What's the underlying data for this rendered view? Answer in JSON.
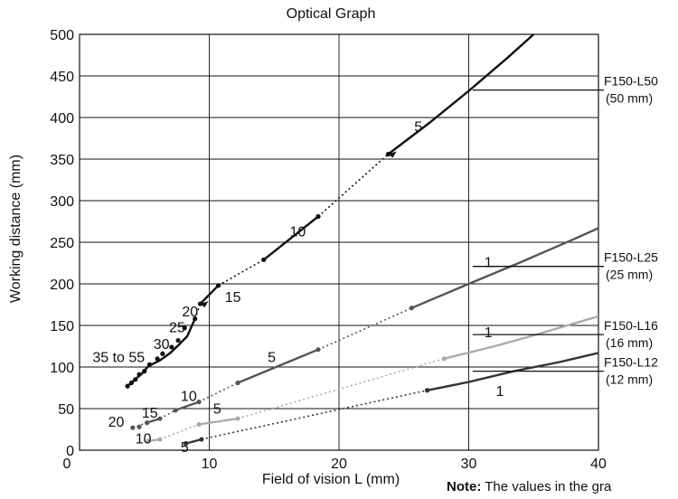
{
  "chart_data": {
    "type": "line",
    "title": "Optical Graph",
    "xlabel": "Field of vision L (mm)",
    "ylabel": "Working distance (mm)",
    "xlim": [
      0,
      40
    ],
    "ylim": [
      0,
      500
    ],
    "x_ticks": [
      0,
      10,
      20,
      30,
      40
    ],
    "y_ticks": [
      0,
      50,
      100,
      150,
      200,
      250,
      300,
      350,
      400,
      450,
      500
    ],
    "grid": true,
    "series": [
      {
        "name": "F150-L50",
        "detail": "(50 mm)",
        "color": "#111111",
        "segments": [
          {
            "style": "solid",
            "points": [
              [
                23.8,
                356
              ],
              [
                27,
                394
              ],
              [
                30,
                432
              ],
              [
                33,
                472
              ],
              [
                35,
                500
              ]
            ]
          },
          {
            "style": "dotted",
            "points": [
              [
                18.4,
                281
              ],
              [
                23.8,
                356
              ]
            ]
          },
          {
            "style": "solid",
            "points": [
              [
                14.2,
                229
              ],
              [
                18.4,
                281
              ]
            ]
          },
          {
            "style": "dotted",
            "points": [
              [
                10.7,
                198
              ],
              [
                14.2,
                229
              ]
            ]
          },
          {
            "style": "solid",
            "points": [
              [
                9.3,
                176
              ],
              [
                10.7,
                198
              ]
            ]
          },
          {
            "style": "dotted",
            "points": [
              [
                8.9,
                158
              ],
              [
                9.3,
                176
              ]
            ]
          },
          {
            "style": "solid",
            "points": [
              [
                3.7,
                77
              ],
              [
                4.2,
                84
              ],
              [
                4.8,
                92
              ],
              [
                5.3,
                101
              ],
              [
                6.2,
                108
              ],
              [
                7.0,
                117
              ],
              [
                7.6,
                126
              ],
              [
                8.3,
                137
              ],
              [
                8.9,
                158
              ]
            ]
          }
        ],
        "markers": [
          [
            23.8,
            356
          ],
          [
            18.4,
            281
          ],
          [
            14.2,
            229
          ],
          [
            10.7,
            198
          ],
          [
            9.3,
            176
          ],
          [
            8.9,
            158
          ],
          [
            8.1,
            147
          ],
          [
            7.6,
            132
          ],
          [
            7.1,
            124
          ],
          [
            6.4,
            116
          ],
          [
            6.0,
            110
          ],
          [
            5.4,
            103
          ],
          [
            5.0,
            95
          ],
          [
            4.6,
            91
          ],
          [
            4.3,
            85
          ],
          [
            4.0,
            81
          ],
          [
            3.7,
            77
          ]
        ],
        "labels": [
          {
            "text": "5",
            "x": 25.8,
            "y": 383
          },
          {
            "text": "10",
            "x": 16.2,
            "y": 257
          },
          {
            "text": "15",
            "x": 11.2,
            "y": 178
          },
          {
            "text": "20",
            "x": 7.9,
            "y": 161
          },
          {
            "text": "25",
            "x": 6.9,
            "y": 142
          },
          {
            "text": "30",
            "x": 5.7,
            "y": 122
          },
          {
            "text": "35 to 55",
            "x": 1.0,
            "y": 106
          }
        ],
        "arrows": [
          [
            23.8,
            356
          ],
          [
            9.3,
            176
          ]
        ],
        "legend_y": 433
      },
      {
        "name": "F150-L25",
        "detail": "(25 mm)",
        "color": "#555555",
        "segments": [
          {
            "style": "solid",
            "points": [
              [
                25.6,
                171
              ],
              [
                30,
                200
              ],
              [
                34,
                226
              ],
              [
                38,
                253
              ],
              [
                40,
                267
              ]
            ]
          },
          {
            "style": "dotted",
            "points": [
              [
                18.4,
                121
              ],
              [
                25.6,
                171
              ]
            ]
          },
          {
            "style": "solid",
            "points": [
              [
                12.2,
                81
              ],
              [
                15,
                99
              ],
              [
                18.4,
                121
              ]
            ]
          },
          {
            "style": "dotted",
            "points": [
              [
                9.2,
                58
              ],
              [
                12.2,
                81
              ]
            ]
          },
          {
            "style": "solid",
            "points": [
              [
                7.4,
                48
              ],
              [
                9.2,
                58
              ]
            ]
          },
          {
            "style": "dotted",
            "points": [
              [
                6.2,
                38
              ],
              [
                7.4,
                48
              ]
            ]
          },
          {
            "style": "solid",
            "points": [
              [
                5.2,
                33
              ],
              [
                6.2,
                38
              ]
            ]
          },
          {
            "style": "dotted",
            "points": [
              [
                4.1,
                27
              ],
              [
                5.2,
                33
              ]
            ]
          }
        ],
        "markers": [
          [
            25.6,
            171
          ],
          [
            18.4,
            121
          ],
          [
            12.2,
            81
          ],
          [
            9.2,
            58
          ],
          [
            7.4,
            48
          ],
          [
            6.2,
            38
          ],
          [
            5.2,
            33
          ],
          [
            4.6,
            28
          ],
          [
            4.1,
            27
          ]
        ],
        "labels": [
          {
            "text": "1",
            "x": 31.2,
            "y": 220
          },
          {
            "text": "5",
            "x": 14.5,
            "y": 106
          },
          {
            "text": "10",
            "x": 7.8,
            "y": 59
          },
          {
            "text": "15",
            "x": 4.8,
            "y": 39
          },
          {
            "text": "20",
            "x": 2.2,
            "y": 28
          }
        ],
        "arrows": [],
        "legend_y": 221
      },
      {
        "name": "F150-L16",
        "detail": "(16 mm)",
        "color": "#aaaaaa",
        "segments": [
          {
            "style": "solid",
            "points": [
              [
                28.1,
                110
              ],
              [
                32,
                125
              ],
              [
                35,
                138
              ],
              [
                40,
                161
              ]
            ]
          },
          {
            "style": "dotted",
            "points": [
              [
                12.2,
                38
              ],
              [
                28.1,
                110
              ]
            ]
          },
          {
            "style": "solid",
            "points": [
              [
                9.2,
                31
              ],
              [
                12.2,
                38
              ]
            ]
          },
          {
            "style": "dotted",
            "points": [
              [
                6.2,
                13
              ],
              [
                9.2,
                31
              ]
            ]
          },
          {
            "style": "solid",
            "points": [
              [
                5.3,
                11
              ],
              [
                6.2,
                13
              ]
            ]
          }
        ],
        "markers": [
          [
            28.1,
            110
          ],
          [
            12.2,
            38
          ],
          [
            9.2,
            31
          ],
          [
            6.2,
            13
          ],
          [
            5.3,
            11
          ]
        ],
        "labels": [
          {
            "text": "1",
            "x": 31.2,
            "y": 136
          },
          {
            "text": "5",
            "x": 10.3,
            "y": 44
          },
          {
            "text": "10",
            "x": 4.3,
            "y": 8
          }
        ],
        "arrows": [],
        "legend_y": 139
      },
      {
        "name": "F150-L12",
        "detail": "(12 mm)",
        "color": "#333333",
        "segments": [
          {
            "style": "solid",
            "points": [
              [
                26.8,
                72
              ],
              [
                30,
                82
              ],
              [
                33.5,
                95
              ],
              [
                37,
                106
              ],
              [
                40,
                117
              ]
            ]
          },
          {
            "style": "dotted",
            "points": [
              [
                9.4,
                13
              ],
              [
                26.8,
                72
              ]
            ]
          },
          {
            "style": "solid",
            "points": [
              [
                8.2,
                8
              ],
              [
                9.4,
                13
              ]
            ]
          }
        ],
        "markers": [
          [
            26.8,
            72
          ],
          [
            9.4,
            13
          ],
          [
            8.2,
            8
          ]
        ],
        "labels": [
          {
            "text": "1",
            "x": 32.1,
            "y": 65
          },
          {
            "text": "5",
            "x": 7.8,
            "y": -2
          }
        ],
        "arrows": [],
        "legend_y": 95
      }
    ],
    "note": {
      "bold": "Note:",
      "text": " The values in the gra"
    }
  }
}
